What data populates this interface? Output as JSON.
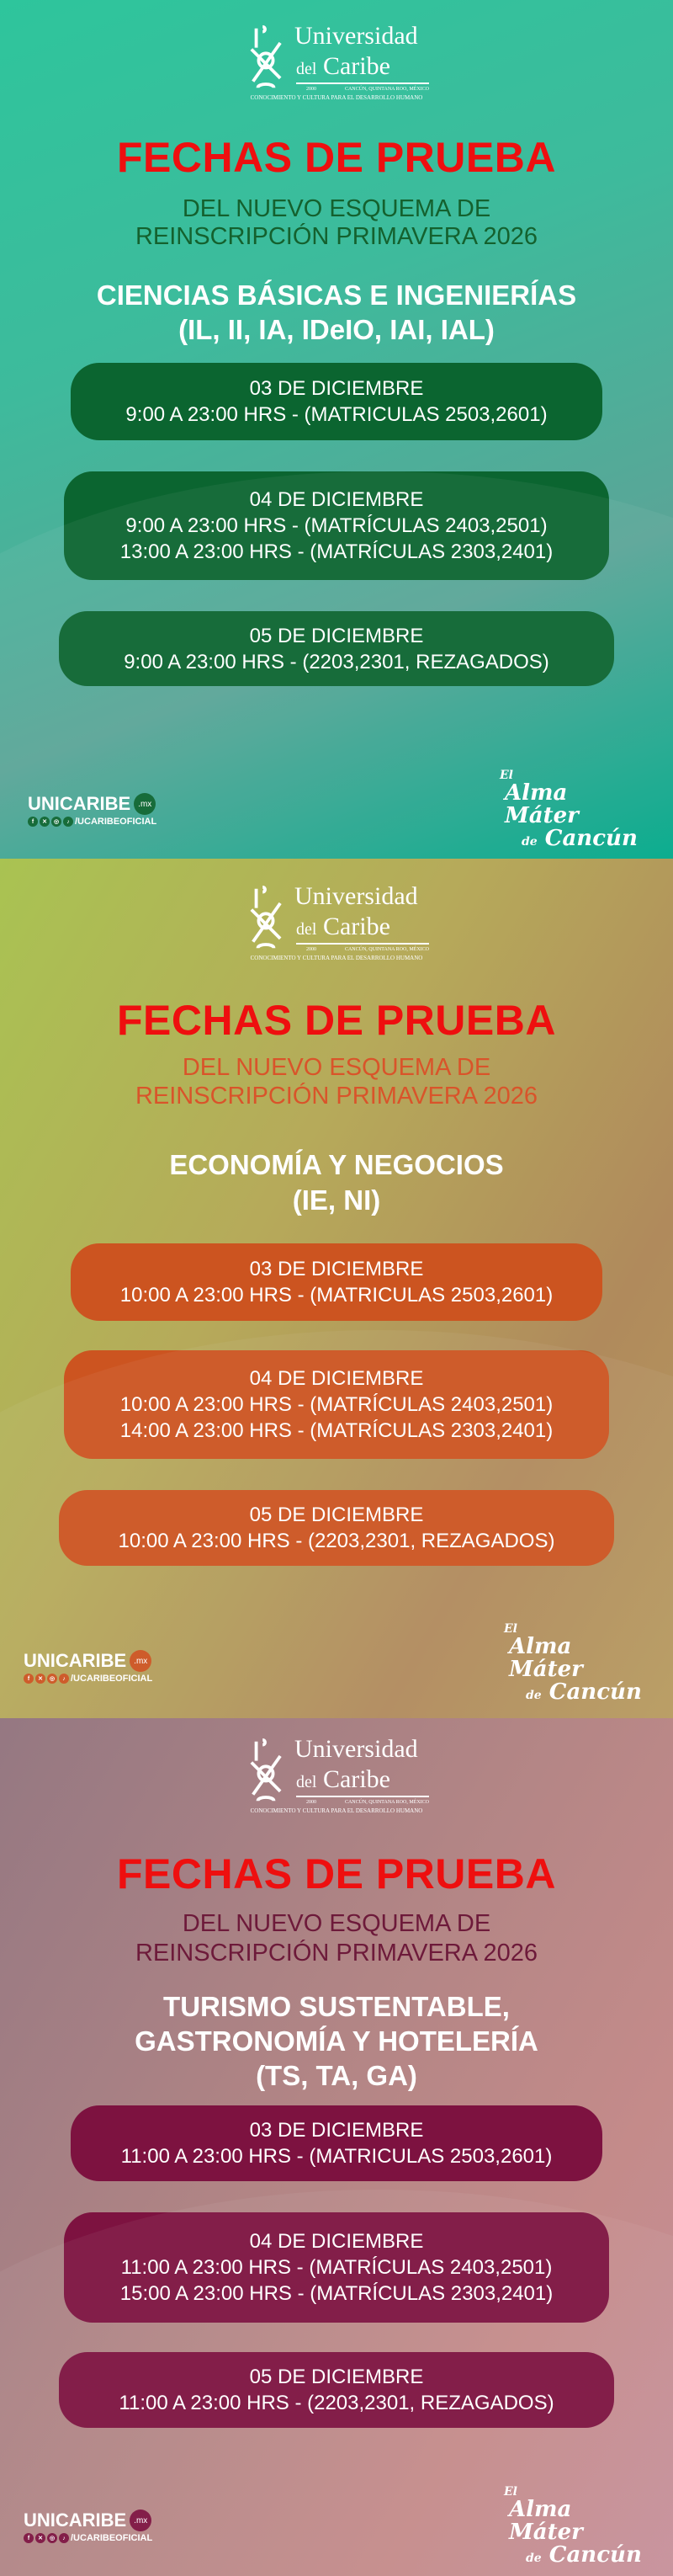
{
  "logo": {
    "line1": "Universidad",
    "line2_small": "del",
    "line2": "Caribe",
    "year": "2000",
    "city": "CANCÚN, QUINTANA ROO, MÉXICO",
    "motto": "CONOCIMIENTO Y CULTURA PARA EL DESARROLLO HUMANO"
  },
  "footer": {
    "brand": "UNICARIBE",
    "brand_tld": ".mx",
    "social_handle": "/UCARIBEOFICIAL",
    "social_icons": [
      "facebook-icon",
      "x-icon",
      "instagram-icon",
      "tiktok-icon"
    ],
    "slogan_1": "El",
    "slogan_2": "Alma Máter",
    "slogan_3_small": "de",
    "slogan_3": "Cancún"
  },
  "colors": {
    "title_red": "#ee0f0f"
  },
  "sections": [
    {
      "title": "FECHAS DE PRUEBA",
      "subtitle_1": "DEL NUEVO ESQUEMA DE",
      "subtitle_2": "REINSCRIPCIÓN PRIMAVERA 2026",
      "category_1": "CIENCIAS BÁSICAS E INGENIERÍAS",
      "category_2": "(IL, II, IA, IDeIO, IAI, IAL)",
      "accent": "#0b6530",
      "subtitle_color": "#14612e",
      "cards": [
        {
          "date": "03 DE DICIEMBRE",
          "lines": [
            "9:00 A 23:00 HRS - (MATRICULAS 2503,2601)"
          ]
        },
        {
          "date": "04 DE DICIEMBRE",
          "lines": [
            "9:00 A 23:00 HRS - (MATRÍCULAS 2403,2501)",
            "13:00 A 23:00 HRS - (MATRÍCULAS 2303,2401)"
          ]
        },
        {
          "date": "05 DE DICIEMBRE",
          "lines": [
            "9:00 A 23:00 HRS -  (2203,2301, REZAGADOS)"
          ]
        }
      ]
    },
    {
      "title": "FECHAS DE PRUEBA",
      "subtitle_1": "DEL NUEVO ESQUEMA DE",
      "subtitle_2": "REINSCRIPCIÓN PRIMAVERA 2026",
      "category_1": "ECONOMÍA Y NEGOCIOS",
      "category_2": "(IE, NI)",
      "accent": "#cc5420",
      "subtitle_color": "#d9542a",
      "cards": [
        {
          "date": "03 DE DICIEMBRE",
          "lines": [
            "10:00 A 23:00 HRS - (MATRICULAS 2503,2601)"
          ]
        },
        {
          "date": "04 DE DICIEMBRE",
          "lines": [
            "10:00 A 23:00 HRS - (MATRÍCULAS 2403,2501)",
            "14:00 A 23:00 HRS - (MATRÍCULAS 2303,2401)"
          ]
        },
        {
          "date": "05 DE DICIEMBRE",
          "lines": [
            "10:00 A 23:00 HRS -  (2203,2301, REZAGADOS)"
          ]
        }
      ]
    },
    {
      "title": "FECHAS DE PRUEBA",
      "subtitle_1": "DEL NUEVO ESQUEMA DE",
      "subtitle_2": "REINSCRIPCIÓN PRIMAVERA 2026",
      "category_1": "TURISMO SUSTENTABLE,",
      "category_2": "GASTRONOMÍA Y HOTELERÍA",
      "category_3": "(TS, TA, GA)",
      "accent": "#7d1240",
      "subtitle_color": "#6d1a3a",
      "cards": [
        {
          "date": "03 DE DICIEMBRE",
          "lines": [
            "11:00 A 23:00 HRS - (MATRICULAS 2503,2601)"
          ]
        },
        {
          "date": "04 DE DICIEMBRE",
          "lines": [
            "11:00 A 23:00 HRS - (MATRÍCULAS 2403,2501)",
            "15:00 A 23:00 HRS - (MATRÍCULAS 2303,2401)"
          ]
        },
        {
          "date": "05 DE DICIEMBRE",
          "lines": [
            "11:00 A 23:00 HRS -  (2203,2301, REZAGADOS)"
          ]
        }
      ]
    }
  ]
}
